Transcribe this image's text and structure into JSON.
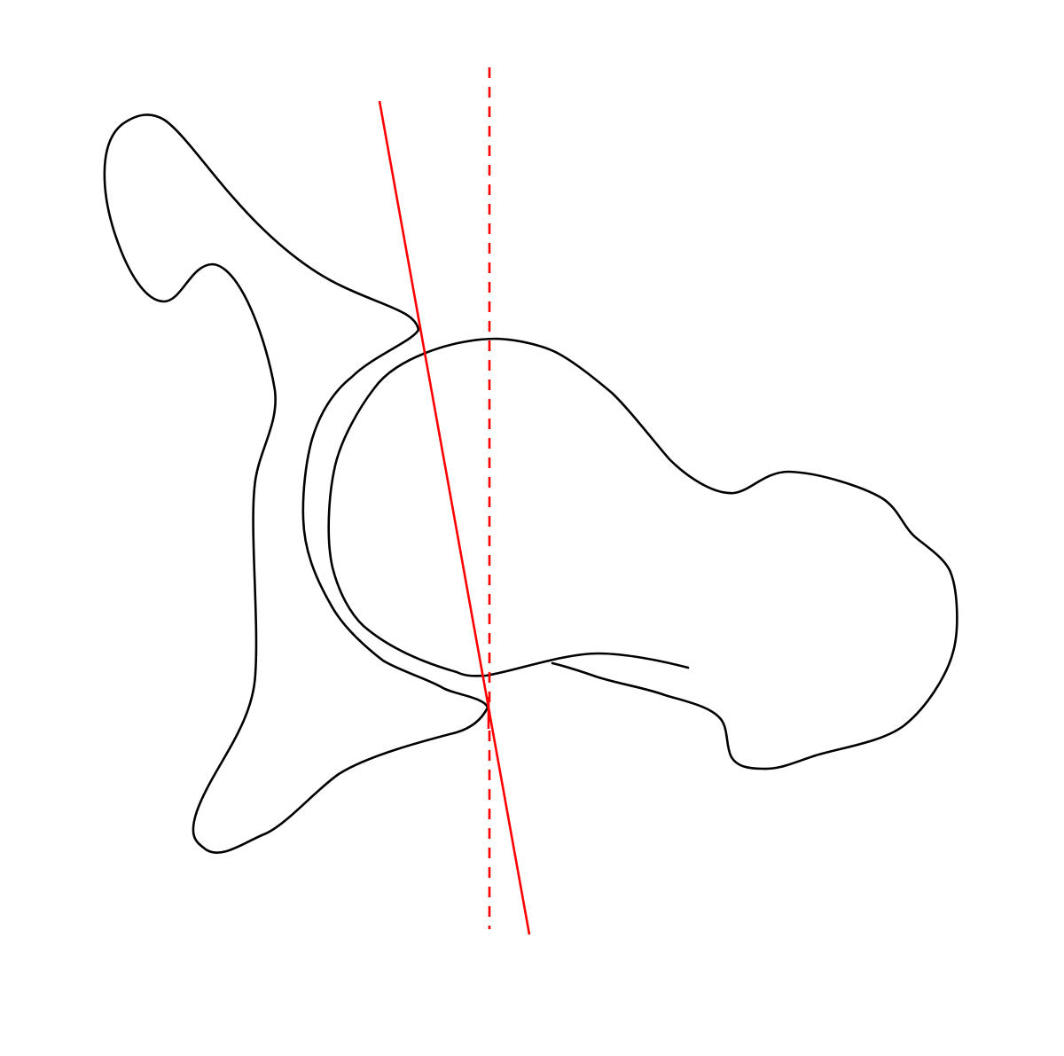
{
  "diagram": {
    "colors": {
      "outline": "#000000",
      "axis_line": "#ff0000",
      "reference_line": "#ff0000",
      "background": "#ffffff"
    },
    "elements": [
      "pelvis-outline",
      "femur-outline",
      "femoral-head-outline",
      "tilted-axis-line",
      "vertical-reference-dashed-line"
    ]
  }
}
